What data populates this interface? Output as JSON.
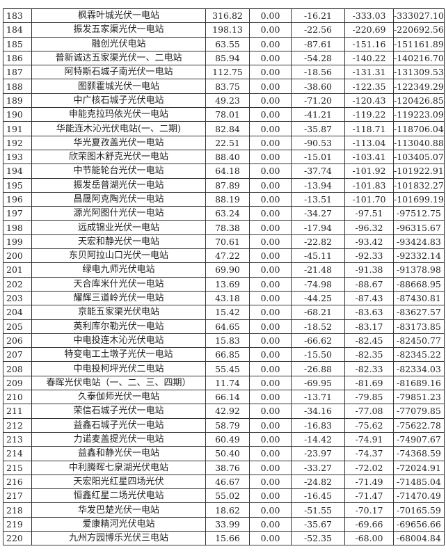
{
  "table": {
    "rows": [
      [
        "183",
        "枫霖叶城光伏一电站",
        "316.82",
        "0.00",
        "-16.21",
        "-333.03",
        "-333027.10"
      ],
      [
        "184",
        "振发五家渠光伏一电站",
        "198.13",
        "0.00",
        "-22.56",
        "-220.69",
        "-220692.56"
      ],
      [
        "185",
        "融创光伏电站",
        "63.55",
        "0.00",
        "-87.61",
        "-151.16",
        "-151161.89"
      ],
      [
        "186",
        "普新诚达五家渠光伏一、二电站",
        "85.94",
        "0.00",
        "-54.28",
        "-140.22",
        "-140216.70"
      ],
      [
        "187",
        "阿特斯石城子南光伏一电站",
        "112.75",
        "0.00",
        "-18.56",
        "-131.31",
        "-131309.53"
      ],
      [
        "188",
        "图颢霍城光伏一电站",
        "83.75",
        "0.00",
        "-38.60",
        "-122.35",
        "-122349.29"
      ],
      [
        "189",
        "中广核石城子光伏电站",
        "49.23",
        "0.00",
        "-71.20",
        "-120.43",
        "-120426.85"
      ],
      [
        "190",
        "申能克拉玛依光伏一电站",
        "78.01",
        "0.00",
        "-41.21",
        "-119.22",
        "-119223.09"
      ],
      [
        "191",
        "华能连木沁光伏电站(一、二期)",
        "82.84",
        "0.00",
        "-35.87",
        "-118.71",
        "-118706.04"
      ],
      [
        "192",
        "华光夏孜盖光伏一电站",
        "22.51",
        "0.00",
        "-90.53",
        "-113.04",
        "-113040.88"
      ],
      [
        "193",
        "欣荣图木舒克光伏一电站",
        "88.40",
        "0.00",
        "-15.01",
        "-103.41",
        "-103405.07"
      ],
      [
        "194",
        "中节能轮台光伏一电站",
        "64.18",
        "0.00",
        "-37.74",
        "-101.92",
        "-101922.91"
      ],
      [
        "195",
        "振发岳普湖光伏一电站",
        "87.89",
        "0.00",
        "-13.94",
        "-101.83",
        "-101832.27"
      ],
      [
        "196",
        "昌晟阿克陶光伏一电站",
        "88.19",
        "0.00",
        "-13.51",
        "-101.70",
        "-101699.19"
      ],
      [
        "197",
        "源光阿图什光伏一电站",
        "63.24",
        "0.00",
        "-34.27",
        "-97.51",
        "-97512.75"
      ],
      [
        "198",
        "远成锦业光伏一电站",
        "78.38",
        "0.00",
        "-17.94",
        "-96.32",
        "-96315.67"
      ],
      [
        "199",
        "天宏和静光伏一电站",
        "70.61",
        "0.00",
        "-22.82",
        "-93.42",
        "-93424.83"
      ],
      [
        "200",
        "东贝阿拉山口光伏一电站",
        "47.22",
        "0.00",
        "-45.11",
        "-92.33",
        "-92332.14"
      ],
      [
        "201",
        "绿电九师光伏电站",
        "69.90",
        "0.00",
        "-21.48",
        "-91.38",
        "-91378.98"
      ],
      [
        "202",
        "天合库米什光伏一电站",
        "13.69",
        "0.00",
        "-74.98",
        "-88.67",
        "-88668.95"
      ],
      [
        "203",
        "耀辉三道岭光伏一电站",
        "43.18",
        "0.00",
        "-44.25",
        "-87.43",
        "-87430.81"
      ],
      [
        "204",
        "京能五家渠光伏电站",
        "15.42",
        "0.00",
        "-68.21",
        "-83.63",
        "-83627.57"
      ],
      [
        "205",
        "英利库尔勒光伏一电站",
        "64.65",
        "0.00",
        "-18.52",
        "-83.17",
        "-83173.85"
      ],
      [
        "206",
        "中电投连木沁光伏电站",
        "15.83",
        "0.00",
        "-66.62",
        "-82.45",
        "-82450.77"
      ],
      [
        "207",
        "特变电工土墩子光伏一电站",
        "66.85",
        "0.00",
        "-15.50",
        "-82.35",
        "-82345.22"
      ],
      [
        "208",
        "中电投柯坪光伏二电站",
        "55.45",
        "0.00",
        "-26.88",
        "-82.33",
        "-82334.03"
      ],
      [
        "209",
        "春晖光伏电站（一、二、三、四期）",
        "11.74",
        "0.00",
        "-69.95",
        "-81.69",
        "-81689.16"
      ],
      [
        "210",
        "久泰伽师光伏一电站",
        "66.14",
        "0.00",
        "-13.71",
        "-79.85",
        "-79851.23"
      ],
      [
        "211",
        "荣信石城子光伏一电站",
        "42.92",
        "0.00",
        "-34.16",
        "-77.08",
        "-77079.85"
      ],
      [
        "212",
        "益鑫石城子光伏一电站",
        "58.79",
        "0.00",
        "-16.83",
        "-75.62",
        "-75622.78"
      ],
      [
        "213",
        "力诺麦盖提光伏一电站",
        "60.49",
        "0.00",
        "-14.42",
        "-74.91",
        "-74907.67"
      ],
      [
        "214",
        "益鑫和静光伏一电站",
        "50.40",
        "0.00",
        "-23.97",
        "-74.37",
        "-74368.59"
      ],
      [
        "215",
        "中利腾晖七泉湖光伏电站",
        "38.76",
        "0.00",
        "-33.27",
        "-72.02",
        "-72024.91"
      ],
      [
        "216",
        "天宏阳光红星四场光伏",
        "46.67",
        "0.00",
        "-24.82",
        "-71.49",
        "-71485.04"
      ],
      [
        "217",
        "恒鑫红星二场光伏电站",
        "55.02",
        "0.00",
        "-16.45",
        "-71.47",
        "-71470.49"
      ],
      [
        "218",
        "华发巴楚光伏一电站",
        "18.62",
        "0.00",
        "-51.55",
        "-70.17",
        "-70165.59"
      ],
      [
        "219",
        "爱康精河光伏电站",
        "33.99",
        "0.00",
        "-35.67",
        "-69.66",
        "-69656.66"
      ],
      [
        "220",
        "九州方园博乐光伏三电站",
        "15.66",
        "0.00",
        "-52.35",
        "-68.00",
        "-68004.84"
      ]
    ]
  }
}
